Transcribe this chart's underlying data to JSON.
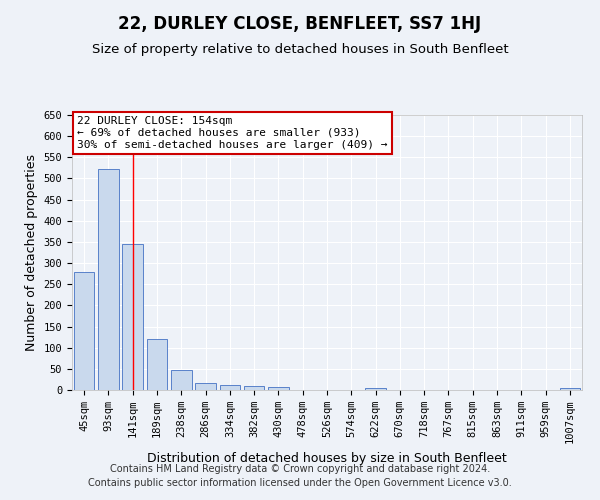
{
  "title": "22, DURLEY CLOSE, BENFLEET, SS7 1HJ",
  "subtitle": "Size of property relative to detached houses in South Benfleet",
  "xlabel": "Distribution of detached houses by size in South Benfleet",
  "ylabel": "Number of detached properties",
  "categories": [
    "45sqm",
    "93sqm",
    "141sqm",
    "189sqm",
    "238sqm",
    "286sqm",
    "334sqm",
    "382sqm",
    "430sqm",
    "478sqm",
    "526sqm",
    "574sqm",
    "622sqm",
    "670sqm",
    "718sqm",
    "767sqm",
    "815sqm",
    "863sqm",
    "911sqm",
    "959sqm",
    "1007sqm"
  ],
  "values": [
    280,
    522,
    345,
    120,
    47,
    16,
    11,
    9,
    6,
    0,
    0,
    0,
    5,
    0,
    0,
    0,
    0,
    0,
    0,
    0,
    5
  ],
  "bar_color": "#c9d9ed",
  "bar_edge_color": "#4472c4",
  "ylim": [
    0,
    650
  ],
  "yticks": [
    0,
    50,
    100,
    150,
    200,
    250,
    300,
    350,
    400,
    450,
    500,
    550,
    600,
    650
  ],
  "red_line_x": 2,
  "annotation_text": "22 DURLEY CLOSE: 154sqm\n← 69% of detached houses are smaller (933)\n30% of semi-detached houses are larger (409) →",
  "annotation_box_color": "#ffffff",
  "annotation_box_edge": "#cc0000",
  "footer_line1": "Contains HM Land Registry data © Crown copyright and database right 2024.",
  "footer_line2": "Contains public sector information licensed under the Open Government Licence v3.0.",
  "background_color": "#eef2f8",
  "grid_color": "#ffffff",
  "title_fontsize": 12,
  "subtitle_fontsize": 9.5,
  "axis_label_fontsize": 9,
  "tick_fontsize": 7.5,
  "footer_fontsize": 7
}
